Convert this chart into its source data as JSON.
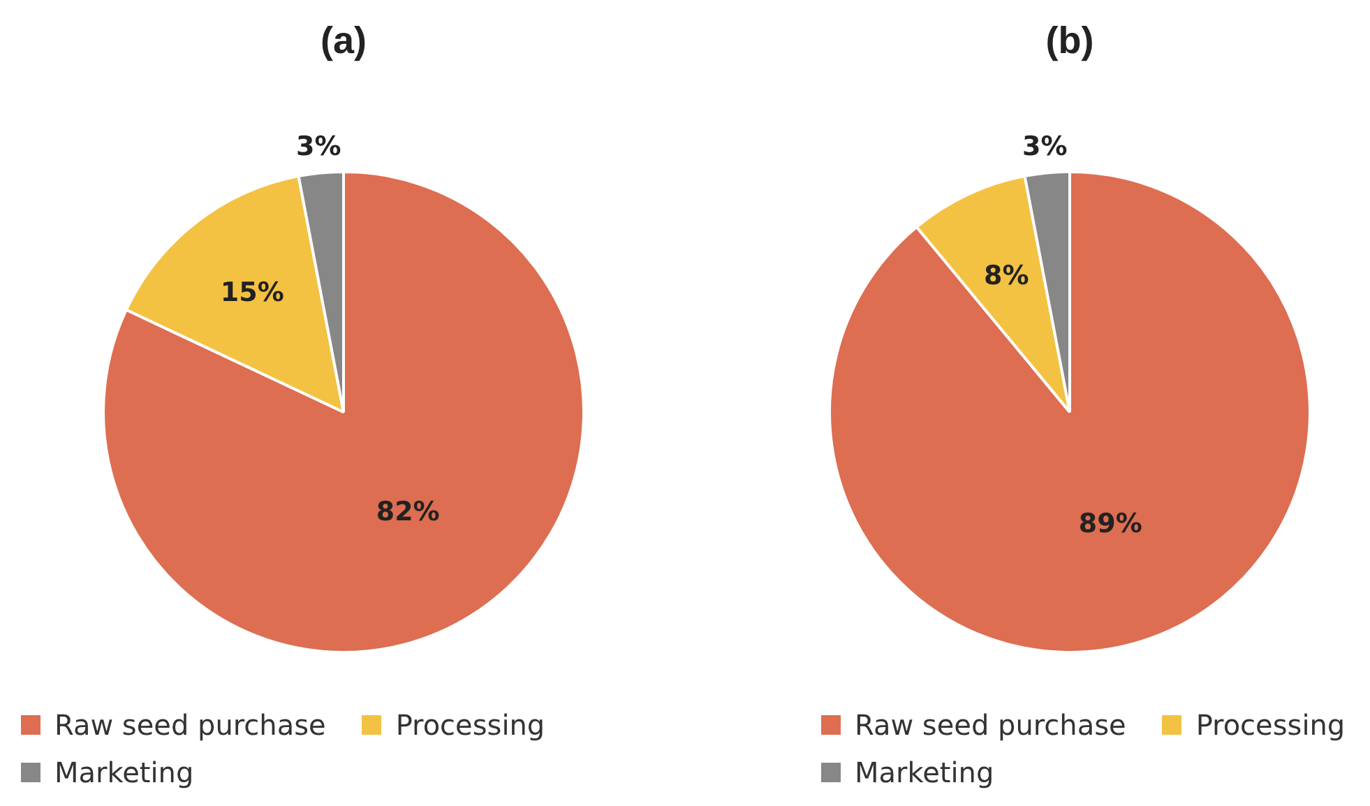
{
  "chart_data": [
    {
      "type": "pie",
      "title": "(a)",
      "categories": [
        "Raw seed purchase",
        "Processing",
        "Marketing"
      ],
      "values": [
        82,
        15,
        3
      ],
      "colors": [
        "#dd6e51",
        "#f4c242",
        "#878787"
      ],
      "value_labels": [
        "82%",
        "15%",
        "3%"
      ],
      "legend": "bottom"
    },
    {
      "type": "pie",
      "title": "(b)",
      "categories": [
        "Raw seed purchase",
        "Processing",
        "Marketing"
      ],
      "values": [
        89,
        8,
        3
      ],
      "colors": [
        "#dd6e51",
        "#f4c242",
        "#878787"
      ],
      "value_labels": [
        "89%",
        "8%",
        "3%"
      ],
      "legend": "bottom"
    }
  ]
}
